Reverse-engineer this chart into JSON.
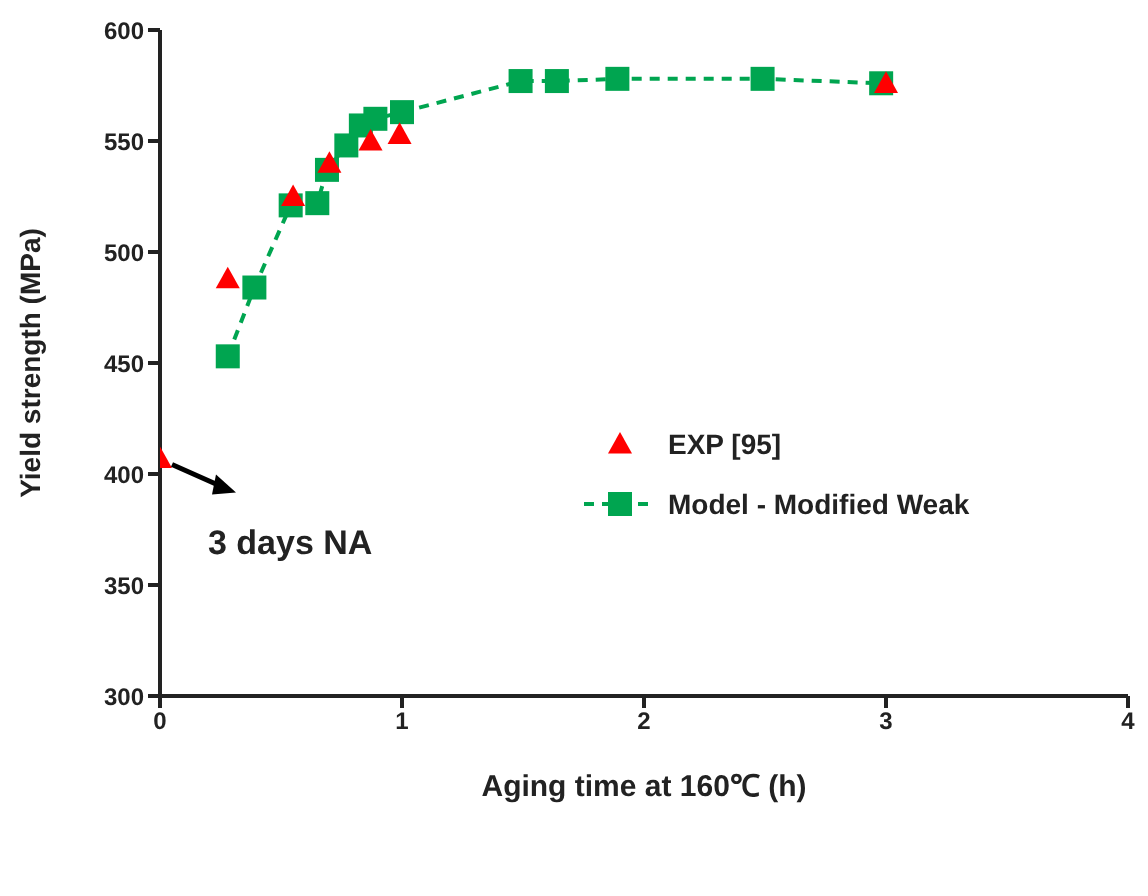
{
  "chart_data": {
    "type": "scatter",
    "xlabel": "Aging time at 160℃ (h)",
    "ylabel": "Yield strength (MPa)",
    "xlim": [
      0,
      4
    ],
    "xticks": [
      0,
      1,
      2,
      3,
      4
    ],
    "ylim": [
      300,
      600
    ],
    "yticks": [
      300,
      350,
      400,
      450,
      500,
      550,
      600
    ],
    "grid": false,
    "legend": "center",
    "series": [
      {
        "name": "EXP [95]",
        "type": "scatter",
        "marker": "triangle",
        "color": "#ff0000",
        "x": [
          0,
          0.28,
          0.55,
          0.7,
          0.87,
          0.99,
          3
        ],
        "values": [
          407,
          488,
          525,
          540,
          550,
          553,
          576
        ]
      },
      {
        "name": "Model - Modified Weak",
        "type": "line",
        "marker": "square",
        "line_style": "dashed",
        "color": "#00a550",
        "x": [
          0.28,
          0.39,
          0.54,
          0.65,
          0.69,
          0.77,
          0.83,
          0.89,
          1.0,
          1.49,
          1.64,
          1.89,
          2.49,
          2.98
        ],
        "values": [
          453,
          484,
          521,
          522,
          537,
          548,
          557,
          560,
          563,
          577,
          577,
          578,
          578,
          576
        ]
      }
    ],
    "annotations": [
      {
        "text": "3 days NA",
        "x": 0,
        "y": 407
      }
    ]
  }
}
